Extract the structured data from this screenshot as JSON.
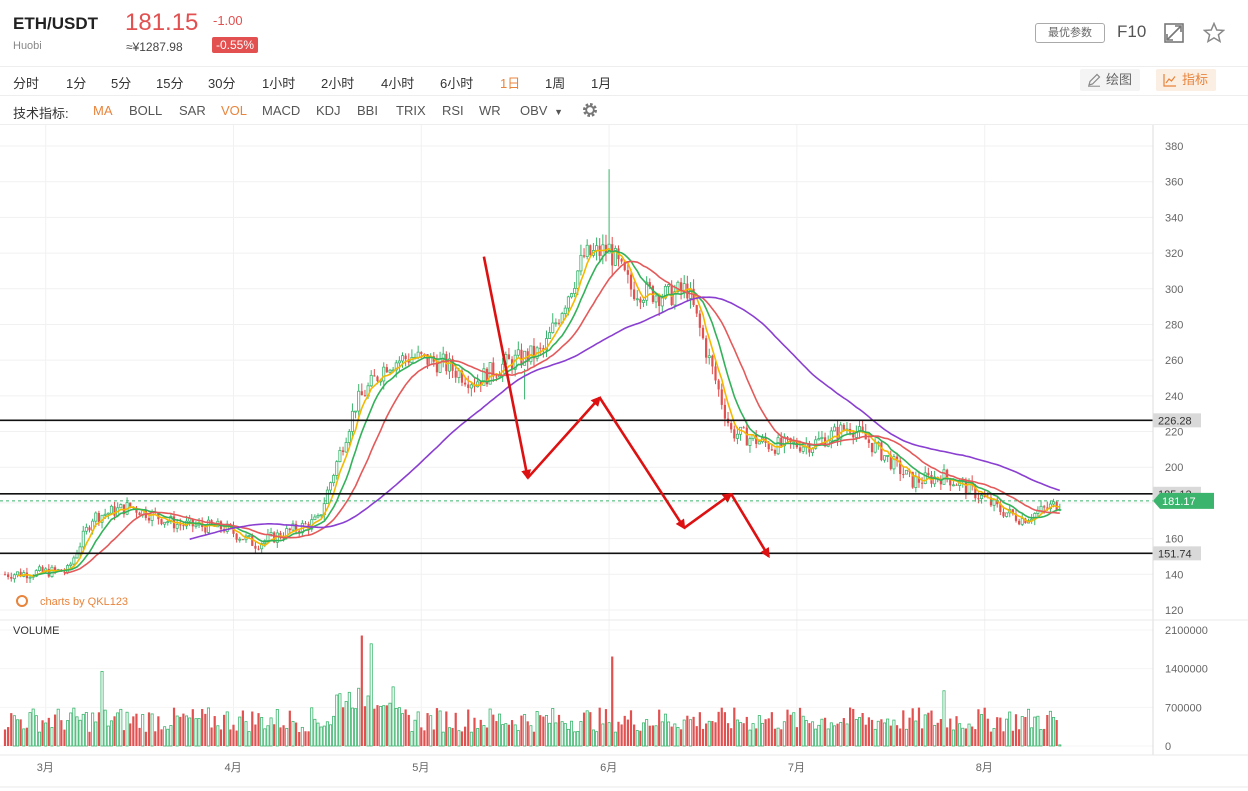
{
  "header": {
    "pair": "ETH/USDT",
    "exchange": "Huobi",
    "price": "181.15",
    "cny_price": "≈¥1287.98",
    "change": "-1.00",
    "change_pct": "-0.55%",
    "best_params_label": "最优参数",
    "f10_label": "F10",
    "icons": [
      "expand-icon",
      "star-icon"
    ]
  },
  "timeframes": {
    "items": [
      "分时",
      "1分",
      "5分",
      "15分",
      "30分",
      "1小时",
      "2小时",
      "4小时",
      "6小时",
      "1日",
      "1周",
      "1月"
    ],
    "active": "1日",
    "draw_label": "绘图",
    "indicator_label": "指标"
  },
  "indicators": {
    "label": "技术指标:",
    "items": [
      "MA",
      "BOLL",
      "SAR",
      "VOL",
      "MACD",
      "KDJ",
      "BBI",
      "TRIX",
      "RSI",
      "WR",
      "OBV"
    ],
    "active": [
      "MA",
      "VOL"
    ]
  },
  "watermark": "charts by QKL123",
  "colors": {
    "up": "#3bb56d",
    "down": "#e25050",
    "ma_yellow": "#f5b800",
    "ma_green": "#33b25a",
    "ma_red": "#e45a5a",
    "ma_purple": "#8a3fd1",
    "annotation": "#dd1111",
    "accent": "#e8843c"
  },
  "chart_data": {
    "type": "candlestick",
    "price_axis": {
      "ticks": [
        380,
        360,
        340,
        320,
        300,
        280,
        260,
        240,
        220,
        200,
        180,
        160,
        140,
        120
      ],
      "labels": [
        "380",
        "360",
        "340",
        "320",
        "300",
        "280",
        "260",
        "240",
        "220",
        "200",
        "160",
        "140",
        "120"
      ],
      "range": [
        113,
        390
      ]
    },
    "x_labels": [
      "3月",
      "4月",
      "5月",
      "6月",
      "7月",
      "8月"
    ],
    "horizontal_lines": [
      {
        "value": 226.28,
        "label": "226.28"
      },
      {
        "value": 185.12,
        "label": "185.12"
      },
      {
        "value": 151.74,
        "label": "151.74"
      }
    ],
    "current_price_label": "181.17",
    "volume": {
      "label": "VOLUME",
      "ticks": [
        2100000,
        1400000,
        700000,
        0
      ],
      "tick_labels": [
        "2100000",
        "1400000",
        "700000",
        "0"
      ]
    },
    "annotation_path_points": [
      {
        "day": 153,
        "price": 318
      },
      {
        "day": 167,
        "price": 194
      },
      {
        "day": 190,
        "price": 239
      },
      {
        "day": 217,
        "price": 166
      },
      {
        "day": 232,
        "price": 185
      },
      {
        "day": 244,
        "price": 150
      }
    ]
  }
}
